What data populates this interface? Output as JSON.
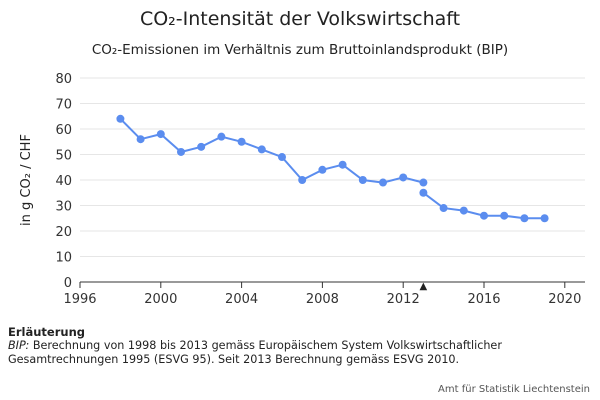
{
  "colors": {
    "series": "#5b8def",
    "grid": "#e6e6e6",
    "axis": "#333333",
    "marker": "#222222"
  },
  "chart_data": {
    "type": "line",
    "title": "CO₂-Intensität der Volkswirtschaft",
    "subtitle": "CO₂-Emissionen im Verhältnis zum Bruttoinlandsprodukt (BIP)",
    "ylabel": "in g CO₂ / CHF",
    "xlabel": "",
    "xlim": [
      1996,
      2021
    ],
    "ylim": [
      0,
      80
    ],
    "xticks": [
      "1996",
      "2000",
      "2004",
      "2008",
      "2012",
      "2016",
      "2020"
    ],
    "yticks": [
      "0",
      "10",
      "20",
      "30",
      "40",
      "50",
      "60",
      "70",
      "80"
    ],
    "grid": true,
    "legend": "none",
    "series": [
      {
        "name": "",
        "x": [
          1998,
          1999,
          2000,
          2001,
          2002,
          2003,
          2004,
          2005,
          2006,
          2007,
          2008,
          2009,
          2010,
          2011,
          2012,
          2013
        ],
        "values": [
          64,
          56,
          58,
          51,
          53,
          57,
          55,
          52,
          49,
          40,
          44,
          46,
          40,
          39,
          41,
          39
        ]
      },
      {
        "name": "",
        "x": [
          2013,
          2014,
          2015,
          2016,
          2017,
          2018,
          2019
        ],
        "values": [
          35,
          29,
          28,
          26,
          26,
          25,
          25
        ]
      }
    ],
    "annotations": [
      {
        "x": 2013,
        "symbol": "▲"
      }
    ]
  },
  "footnote": {
    "heading": "Erläuterung",
    "term": "BIP:",
    "text": " Berechnung von 1998 bis 2013 gemäss Europäischem System Volkswirtschaftlicher Gesamtrechnungen 1995 (ESVG 95). Seit 2013 Berechnung gemäss ESVG 2010."
  },
  "credits": "Amt für Statistik Liechtenstein"
}
